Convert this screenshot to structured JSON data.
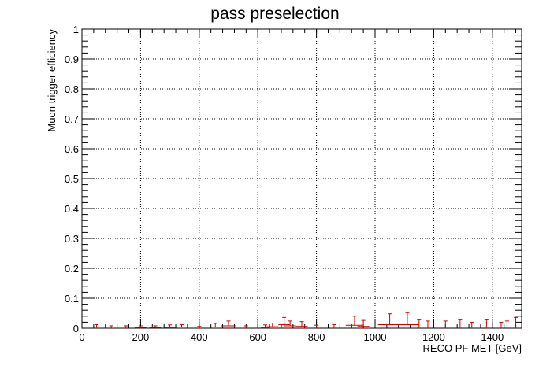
{
  "chart_data": {
    "type": "scatter",
    "title": "pass preselection",
    "xlabel": "RECO PF MET [GeV]",
    "ylabel": "Muon trigger efficiency",
    "xlim": [
      0,
      1500
    ],
    "ylim": [
      0,
      1
    ],
    "grid": true,
    "x_ticks": [
      "0",
      "200",
      "400",
      "600",
      "800",
      "1000",
      "1200",
      "1400"
    ],
    "y_ticks": [
      "0",
      "0.1",
      "0.2",
      "0.3",
      "0.4",
      "0.5",
      "0.6",
      "0.7",
      "0.8",
      "0.9",
      "1"
    ],
    "marker_color": "#cc0000",
    "series": [
      {
        "points": [
          {
            "x": 50,
            "y": 0.0,
            "xerr": 0,
            "yhi": 0.012
          },
          {
            "x": 100,
            "y": 0.0,
            "xerr": 0,
            "yhi": 0.008
          },
          {
            "x": 150,
            "y": 0.0,
            "xerr": 0,
            "yhi": 0.008
          },
          {
            "x": 200,
            "y": 0.002,
            "xerr": 20,
            "yhi": 0.006
          },
          {
            "x": 250,
            "y": 0.002,
            "xerr": 20,
            "yhi": 0.006
          },
          {
            "x": 300,
            "y": 0.003,
            "xerr": 20,
            "yhi": 0.008
          },
          {
            "x": 340,
            "y": 0.004,
            "xerr": 20,
            "yhi": 0.008
          },
          {
            "x": 400,
            "y": 0.0,
            "xerr": 0,
            "yhi": 0.006
          },
          {
            "x": 455,
            "y": 0.004,
            "xerr": 15,
            "yhi": 0.012
          },
          {
            "x": 500,
            "y": 0.008,
            "xerr": 25,
            "yhi": 0.016
          },
          {
            "x": 560,
            "y": 0.0,
            "xerr": 0,
            "yhi": 0.008
          },
          {
            "x": 625,
            "y": 0.003,
            "xerr": 15,
            "yhi": 0.008
          },
          {
            "x": 650,
            "y": 0.005,
            "xerr": 20,
            "yhi": 0.012
          },
          {
            "x": 690,
            "y": 0.012,
            "xerr": 20,
            "yhi": 0.024
          },
          {
            "x": 710,
            "y": 0.008,
            "xerr": 20,
            "yhi": 0.016
          },
          {
            "x": 750,
            "y": 0.006,
            "xerr": 20,
            "yhi": 0.016
          },
          {
            "x": 800,
            "y": 0.0,
            "xerr": 0,
            "yhi": 0.01
          },
          {
            "x": 860,
            "y": 0.0,
            "xerr": 0,
            "yhi": 0.012
          },
          {
            "x": 930,
            "y": 0.01,
            "xerr": 30,
            "yhi": 0.03
          },
          {
            "x": 960,
            "y": 0.006,
            "xerr": 20,
            "yhi": 0.02
          },
          {
            "x": 1050,
            "y": 0.012,
            "xerr": 40,
            "yhi": 0.036
          },
          {
            "x": 1110,
            "y": 0.012,
            "xerr": 40,
            "yhi": 0.04
          },
          {
            "x": 1150,
            "y": 0.0,
            "xerr": 0,
            "yhi": 0.028
          },
          {
            "x": 1180,
            "y": 0.0,
            "xerr": 0,
            "yhi": 0.024
          },
          {
            "x": 1240,
            "y": 0.0,
            "xerr": 0,
            "yhi": 0.024
          },
          {
            "x": 1290,
            "y": 0.0,
            "xerr": 0,
            "yhi": 0.028
          },
          {
            "x": 1330,
            "y": 0.0,
            "xerr": 0,
            "yhi": 0.02
          },
          {
            "x": 1380,
            "y": 0.0,
            "xerr": 0,
            "yhi": 0.028
          },
          {
            "x": 1430,
            "y": 0.0,
            "xerr": 0,
            "yhi": 0.02
          },
          {
            "x": 1450,
            "y": 0.0,
            "xerr": 0,
            "yhi": 0.024
          },
          {
            "x": 1480,
            "y": 0.0,
            "xerr": 0,
            "yhi": 0.036
          }
        ]
      }
    ]
  }
}
